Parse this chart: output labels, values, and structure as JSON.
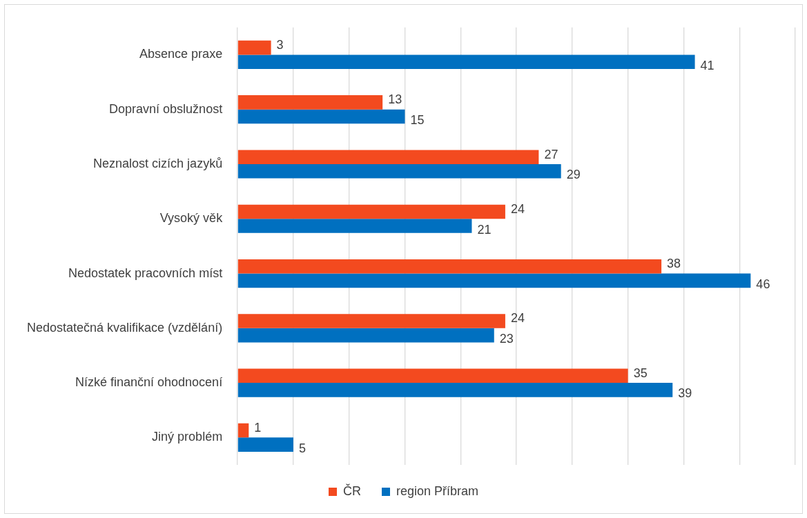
{
  "chart_data": {
    "type": "bar",
    "orientation": "horizontal",
    "categories": [
      "Absence praxe",
      "Dopravní obslužnost",
      "Neznalost cizích jazyků",
      "Vysoký věk",
      "Nedostatek pracovních míst",
      "Nedostatečná kvalifikace (vzdělání)",
      "Nízké finanční ohodnocení",
      "Jiný problém"
    ],
    "series": [
      {
        "name": "ČR",
        "color": "#f34a1f",
        "values": [
          3,
          13,
          27,
          24,
          38,
          24,
          35,
          1
        ]
      },
      {
        "name": "region Příbram",
        "color": "#0070c0",
        "values": [
          41,
          15,
          29,
          21,
          46,
          23,
          39,
          5
        ]
      }
    ],
    "xlim": [
      0,
      50
    ],
    "xticks": [
      {
        "value": 0,
        "label": null
      },
      {
        "value": 5,
        "label": null
      },
      {
        "value": 10,
        "label": null
      },
      {
        "value": 15,
        "label": null
      },
      {
        "value": 20,
        "label": null
      },
      {
        "value": 25,
        "label": null
      },
      {
        "value": 30,
        "label": null
      },
      {
        "value": 35,
        "label": null
      },
      {
        "value": 40,
        "label": null
      },
      {
        "value": 45,
        "label": null
      },
      {
        "value": 50,
        "label": null
      }
    ],
    "grid": "x",
    "legend": "bottom",
    "tick_labels": "y",
    "data_labels": true
  }
}
